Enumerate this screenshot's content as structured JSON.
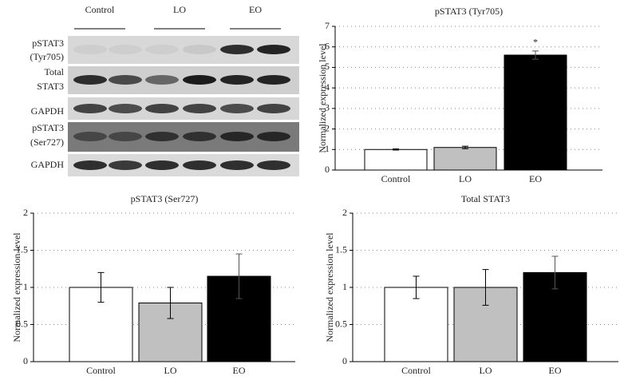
{
  "blot": {
    "groups": [
      "Control",
      "LO",
      "EO"
    ],
    "rows": [
      [
        "pSTAT3",
        "(Tyr705)"
      ],
      [
        "Total",
        "STAT3"
      ],
      [
        "GAPDH"
      ],
      [
        "pSTAT3",
        "(Ser727)"
      ],
      [
        "GAPDH"
      ]
    ]
  },
  "chart_data": [
    {
      "type": "bar",
      "title": "pSTAT3 (Tyr705)",
      "y_label": "Normalized expression level",
      "categories": [
        "Control",
        "LO",
        "EO"
      ],
      "values": [
        1.0,
        1.1,
        5.6
      ],
      "errors": [
        0.03,
        0.06,
        0.2
      ],
      "colors": [
        "#ffffff",
        "#c0c0c0",
        "#000000"
      ],
      "annotations": [
        null,
        null,
        "*"
      ],
      "ylim": [
        0,
        7
      ],
      "yticks": [
        0,
        1,
        2,
        3,
        4,
        5,
        6,
        7
      ],
      "grid": true
    },
    {
      "type": "bar",
      "title": "pSTAT3 (Ser727)",
      "y_label": "Normalized expression level",
      "categories": [
        "Control",
        "LO",
        "EO"
      ],
      "values": [
        1.0,
        0.79,
        1.15
      ],
      "errors": [
        0.2,
        0.21,
        0.3
      ],
      "colors": [
        "#ffffff",
        "#c0c0c0",
        "#000000"
      ],
      "ylim": [
        0,
        2
      ],
      "yticks": [
        0,
        0.5,
        1,
        1.5,
        2
      ],
      "grid": true
    },
    {
      "type": "bar",
      "title": "Total STAT3",
      "y_label": "Normalized expression level",
      "categories": [
        "Control",
        "LO",
        "EO"
      ],
      "values": [
        1.0,
        1.0,
        1.2
      ],
      "errors": [
        0.15,
        0.24,
        0.22
      ],
      "colors": [
        "#ffffff",
        "#c0c0c0",
        "#000000"
      ],
      "ylim": [
        0,
        2
      ],
      "yticks": [
        0,
        0.5,
        1,
        1.5,
        2
      ],
      "grid": true
    }
  ]
}
